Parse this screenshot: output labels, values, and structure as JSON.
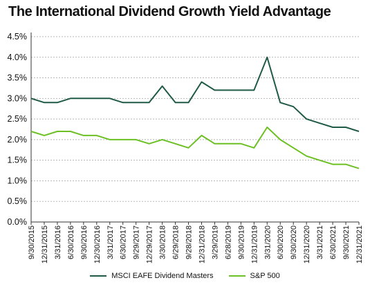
{
  "chart_data": {
    "type": "line",
    "title": "The International Dividend Growth Yield Advantage",
    "x": [
      "9/30/2015",
      "12/31/2015",
      "3/31/2016",
      "6/30/2016",
      "9/30/2016",
      "12/30/2016",
      "3/31/2017",
      "6/30/2017",
      "9/29/2017",
      "12/29/2017",
      "3/30/2018",
      "6/29/2018",
      "9/28/2018",
      "12/31/2018",
      "3/29/2019",
      "6/28/2019",
      "9/30/2019",
      "12/31/2019",
      "3/31/2020",
      "6/30/2020",
      "9/30/2020",
      "12/31/2020",
      "3/31/2021",
      "6/30/2021",
      "9/30/2021",
      "12/31/2021"
    ],
    "y_ticks": [
      "0.0%",
      "0.5%",
      "1.0%",
      "1.5%",
      "2.0%",
      "2.5%",
      "3.0%",
      "3.5%",
      "4.0%",
      "4.5%"
    ],
    "ylim": [
      0,
      4.5
    ],
    "y_unit": "%",
    "grid": true,
    "legend_position": "bottom",
    "series": [
      {
        "name": "MSCI EAFE Dividend Masters",
        "color": "#1f5a46",
        "values": [
          3.0,
          2.9,
          2.9,
          3.0,
          3.0,
          3.0,
          3.0,
          2.9,
          2.9,
          2.9,
          3.3,
          2.9,
          2.9,
          3.4,
          3.2,
          3.2,
          3.2,
          3.2,
          4.0,
          2.9,
          2.8,
          2.5,
          2.4,
          2.3,
          2.3,
          2.2
        ]
      },
      {
        "name": "S&P 500",
        "color": "#6cc024",
        "values": [
          2.2,
          2.1,
          2.2,
          2.2,
          2.1,
          2.1,
          2.0,
          2.0,
          2.0,
          1.9,
          2.0,
          1.9,
          1.8,
          2.1,
          1.9,
          1.9,
          1.9,
          1.8,
          2.3,
          2.0,
          1.8,
          1.6,
          1.5,
          1.4,
          1.4,
          1.3
        ]
      }
    ]
  }
}
